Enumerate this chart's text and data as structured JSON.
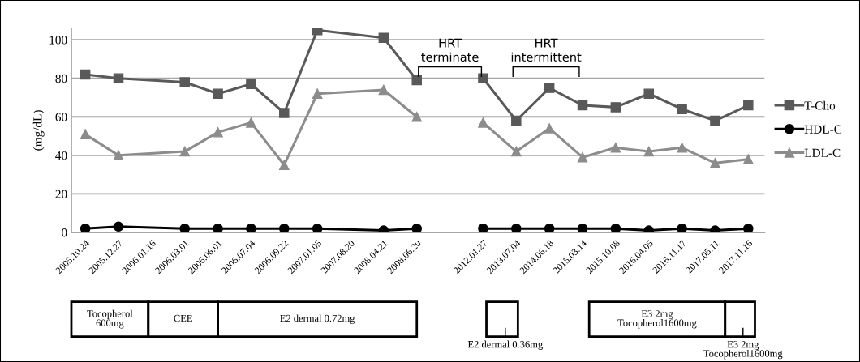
{
  "chart_data": {
    "type": "line",
    "ylabel": "(mg/dL)",
    "categories": [
      "2005.10.24",
      "2005.12.27",
      "2006.01.16",
      "2006.03.01",
      "2006.06.01",
      "2006.07.04",
      "2006.09.22",
      "2007.01.05",
      "2007.08.20",
      "2008.04.21",
      "2008.06.20",
      null,
      "2012.01.27",
      "2013.07.04",
      "2014.06.18",
      "2015.03.14",
      "2015.10.08",
      "2016.04.05",
      "2016.11.17",
      "2017.05.11",
      "2017.11.16"
    ],
    "series": [
      {
        "name": "T-Cho",
        "color": "#595959",
        "marker": "square",
        "values": [
          82,
          80,
          null,
          78,
          72,
          77,
          62,
          105,
          null,
          101,
          79,
          null,
          80,
          58,
          75,
          66,
          65,
          72,
          64,
          58,
          66
        ]
      },
      {
        "name": "HDL-C",
        "color": "#000000",
        "marker": "circle",
        "values": [
          2,
          3,
          null,
          2,
          2,
          2,
          2,
          2,
          null,
          1,
          2,
          null,
          2,
          2,
          2,
          2,
          2,
          1,
          2,
          1,
          2
        ]
      },
      {
        "name": "LDL-C",
        "color": "#8c8c8c",
        "marker": "triangle",
        "values": [
          51,
          40,
          null,
          42,
          52,
          57,
          35,
          72,
          null,
          74,
          60,
          null,
          57,
          42,
          54,
          39,
          44,
          42,
          44,
          36,
          38
        ]
      }
    ],
    "ylim": [
      0,
      106
    ],
    "yticks": [
      0,
      20,
      40,
      60,
      80,
      100
    ],
    "grid": "y",
    "legend": "right",
    "line_style": "solid",
    "annotations": [
      "HRT\nterminate",
      "HRT\nintermittent",
      "Tocopherol\n600mg",
      "CEE",
      "E2 dermal 0.72mg",
      "E2 dermal 0.36mg",
      "E3 2mg\nTocopherol1600mg",
      "E3 2mg\nTocopherol1600mg"
    ]
  }
}
